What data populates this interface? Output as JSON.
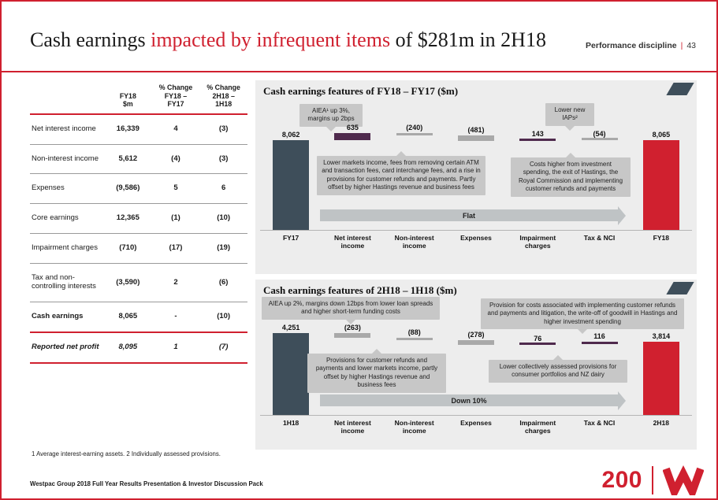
{
  "slide": {
    "title": {
      "pre": "Cash earnings ",
      "highlight": "impacted by infrequent items",
      "post": " of $281m in 2H18"
    },
    "header_right": {
      "label": "Performance discipline",
      "separator": "|",
      "page": "43"
    },
    "footnote": "1 Average interest-earning assets.  2 Individually assessed provisions.",
    "footer_text": "Westpac Group 2018 Full Year Results Presentation & Investor Discussion Pack",
    "logo_200_text": "200",
    "accent_red": "#d0202f"
  },
  "table": {
    "headers": [
      "",
      "FY18\n$m",
      "% Change\nFY18 –\nFY17",
      "% Change\n2H18 –\n1H18"
    ],
    "rows": [
      {
        "label": "Net interest income",
        "values": [
          "16,339",
          "4",
          "(3)"
        ],
        "emphasis": ""
      },
      {
        "label": "Non-interest income",
        "values": [
          "5,612",
          "(4)",
          "(3)"
        ],
        "emphasis": ""
      },
      {
        "label": "Expenses",
        "values": [
          "(9,586)",
          "5",
          "6"
        ],
        "emphasis": ""
      },
      {
        "label": "Core earnings",
        "values": [
          "12,365",
          "(1)",
          "(10)"
        ],
        "emphasis": ""
      },
      {
        "label": "Impairment charges",
        "values": [
          "(710)",
          "(17)",
          "(19)"
        ],
        "emphasis": ""
      },
      {
        "label": "Tax and non-controlling interests",
        "values": [
          "(3,590)",
          "2",
          "(6)"
        ],
        "emphasis": ""
      },
      {
        "label": "Cash earnings",
        "values": [
          "8,065",
          "-",
          "(10)"
        ],
        "emphasis": "bold"
      },
      {
        "label": "Reported net profit",
        "values": [
          "8,095",
          "1",
          "(7)"
        ],
        "emphasis": "bold-italic"
      }
    ]
  },
  "chart_data": [
    {
      "type": "waterfall",
      "title": "Cash earnings features of  FY18 – FY17 ($m)",
      "categories": [
        "FY17",
        "Net interest income",
        "Non-interest income",
        "Expenses",
        "Impairment charges",
        "Tax & NCI",
        "FY18"
      ],
      "values": [
        8062,
        635,
        -240,
        -481,
        143,
        -54,
        8065
      ],
      "labels": [
        "8,062",
        "635",
        "(240)",
        "(481)",
        "143",
        "(54)",
        "8,065"
      ],
      "bar_roles": [
        "start",
        "pos",
        "neg",
        "neg",
        "pos",
        "neg",
        "end"
      ],
      "axis_max": 8700,
      "annotations": [
        "AIEA¹ up 3%, margins up 2bps",
        "Lower new IAPs²",
        "Lower markets income, fees from removing certain ATM and transaction fees, card interchange fees, and a rise in provisions for customer refunds and payments. Partly offset by higher Hastings revenue and business fees",
        "Costs higher from investment spending, the exit of Hastings, the Royal Commission and implementing customer refunds and payments"
      ],
      "arrow_label": "Flat",
      "colors": {
        "start": "#3e4e5a",
        "end": "#d0202f",
        "pos": "#4f2a4d",
        "neg": "#a9a9a9"
      }
    },
    {
      "type": "waterfall",
      "title": "Cash earnings features of 2H18 – 1H18 ($m)",
      "categories": [
        "1H18",
        "Net interest income",
        "Non-interest income",
        "Expenses",
        "Impairment charges",
        "Tax & NCI",
        "2H18"
      ],
      "values": [
        4251,
        -263,
        -88,
        -278,
        76,
        116,
        3814
      ],
      "labels": [
        "4,251",
        "(263)",
        "(88)",
        "(278)",
        "76",
        "116",
        "3,814"
      ],
      "bar_roles": [
        "start",
        "neg",
        "neg",
        "neg",
        "pos",
        "pos",
        "end"
      ],
      "axis_max": 4251,
      "annotations": [
        "AIEA up 2%, margins down 12bps from lower loan spreads and higher short-term funding costs",
        "Provision for costs associated with implementing customer refunds and payments and litigation, the write-off of goodwill in Hastings and higher investment spending",
        "Provisions for customer refunds and payments and lower markets income, partly offset by higher Hastings revenue and business fees",
        "Lower collectively assessed provisions for consumer portfolios and NZ dairy"
      ],
      "arrow_label": "Down 10%",
      "colors": {
        "start": "#3e4e5a",
        "end": "#d0202f",
        "pos": "#4f2a4d",
        "neg": "#a9a9a9"
      }
    }
  ]
}
